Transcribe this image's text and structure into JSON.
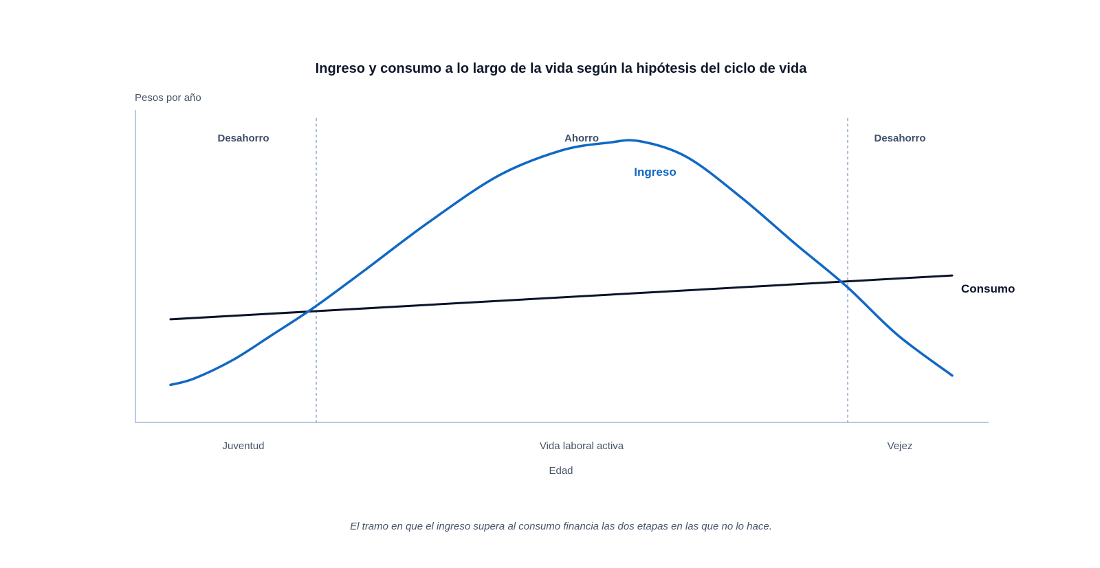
{
  "chart_data": {
    "type": "line",
    "title": "Ingreso y consumo a lo largo de la vida según la hipótesis del ciclo de vida",
    "ylabel": "Pesos por año",
    "xlabel": "Edad",
    "caption": "El tramo en que el ingreso supera al consumo financia las dos etapas en las que no lo hace.",
    "stages": [
      "Juventud",
      "Vida laboral activa",
      "Vejez"
    ],
    "phases": [
      "Desahorro",
      "Ahorro",
      "Desahorro"
    ],
    "grid": false,
    "colors": {
      "ingreso": "#1168c5",
      "consumo": "#0b1428",
      "axis": "#b8cbe6",
      "divider": "#7f9cc0"
    },
    "series": [
      {
        "name": "Ingreso",
        "key": "ingreso",
        "x": [
          0,
          0.03,
          0.08,
          0.13,
          0.185,
          0.25,
          0.33,
          0.42,
          0.5,
          0.56,
          0.6,
          0.66,
          0.73,
          0.8,
          0.865,
          0.93,
          1.0
        ],
        "y": [
          0.12,
          0.14,
          0.2,
          0.28,
          0.37,
          0.49,
          0.64,
          0.79,
          0.87,
          0.895,
          0.9,
          0.85,
          0.72,
          0.57,
          0.435,
          0.28,
          0.15
        ]
      },
      {
        "name": "Consumo",
        "key": "consumo",
        "x": [
          0,
          1.0
        ],
        "y": [
          0.33,
          0.47
        ]
      }
    ]
  }
}
